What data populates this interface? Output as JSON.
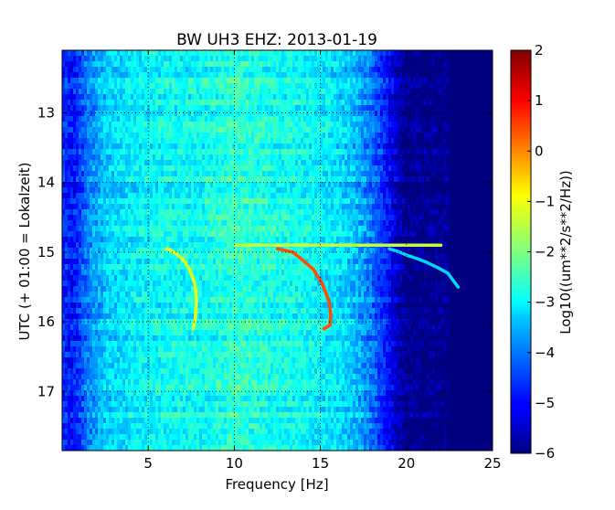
{
  "chart_data": {
    "type": "heatmap",
    "title": "BW UH3 EHZ: 2013-01-19",
    "xlabel": "Frequency [Hz]",
    "ylabel": "UTC (+ 01:00 = Lokalzeit)",
    "xlim": [
      0,
      25
    ],
    "ylim": [
      17.85,
      12.1
    ],
    "y_axis_inverted": true,
    "xticks": [
      5,
      10,
      15,
      20,
      25
    ],
    "xtick_labels": [
      "5",
      "10",
      "15",
      "20",
      "25"
    ],
    "yticks": [
      13,
      14,
      15,
      16,
      17
    ],
    "ytick_labels": [
      "13",
      "14",
      "15",
      "16",
      "17"
    ],
    "grid": true,
    "grid_style": "dotted",
    "colormap": "jet",
    "colorbar": {
      "label": "Log10((um**2/s**2/Hz))",
      "range": [
        -6,
        2
      ],
      "ticks": [
        2,
        1,
        0,
        -1,
        -2,
        -3,
        -4,
        -5,
        -6
      ],
      "tick_labels": [
        "2",
        "1",
        "0",
        "−1",
        "−2",
        "−3",
        "−4",
        "−5",
        "−6"
      ]
    },
    "background_level_by_frequency": [
      {
        "freq": 0.0,
        "level": -4.6
      },
      {
        "freq": 0.5,
        "level": -4.9
      },
      {
        "freq": 1.0,
        "level": -4.5
      },
      {
        "freq": 1.5,
        "level": -4.0
      },
      {
        "freq": 2.5,
        "level": -3.4
      },
      {
        "freq": 4.0,
        "level": -3.1
      },
      {
        "freq": 6.0,
        "level": -2.9
      },
      {
        "freq": 8.0,
        "level": -2.9
      },
      {
        "freq": 10.0,
        "level": -2.6
      },
      {
        "freq": 12.0,
        "level": -2.8
      },
      {
        "freq": 14.0,
        "level": -2.9
      },
      {
        "freq": 16.0,
        "level": -3.2
      },
      {
        "freq": 17.0,
        "level": -3.5
      },
      {
        "freq": 18.0,
        "level": -4.1
      },
      {
        "freq": 18.8,
        "level": -4.8
      },
      {
        "freq": 19.5,
        "level": -5.5
      },
      {
        "freq": 20.0,
        "level": -5.9
      },
      {
        "freq": 25.0,
        "level": -6.0
      }
    ],
    "series": [
      {
        "points": [
          {
            "x": 6.1,
            "y": 14.95
          },
          {
            "x": 6.5,
            "y": 15.0
          },
          {
            "x": 7.0,
            "y": 15.1
          },
          {
            "x": 7.4,
            "y": 15.25
          },
          {
            "x": 7.7,
            "y": 15.45
          },
          {
            "x": 7.8,
            "y": 15.7
          },
          {
            "x": 7.75,
            "y": 15.95
          },
          {
            "x": 7.6,
            "y": 16.1
          }
        ],
        "level": -1.2
      },
      {
        "points": [
          {
            "x": 12.5,
            "y": 14.95
          },
          {
            "x": 13.4,
            "y": 15.0
          },
          {
            "x": 14.0,
            "y": 15.12
          },
          {
            "x": 14.6,
            "y": 15.25
          },
          {
            "x": 15.1,
            "y": 15.45
          },
          {
            "x": 15.5,
            "y": 15.7
          },
          {
            "x": 15.6,
            "y": 15.9
          },
          {
            "x": 15.55,
            "y": 16.05
          },
          {
            "x": 15.2,
            "y": 16.1
          }
        ],
        "level": 0.4
      },
      {
        "points": [
          {
            "x": 10.0,
            "y": 14.9
          },
          {
            "x": 12.0,
            "y": 14.9
          },
          {
            "x": 14.0,
            "y": 14.9
          },
          {
            "x": 16.0,
            "y": 14.9
          },
          {
            "x": 18.0,
            "y": 14.9
          },
          {
            "x": 20.0,
            "y": 14.9
          },
          {
            "x": 22.0,
            "y": 14.9
          }
        ],
        "level": -1.5
      },
      {
        "points": [
          {
            "x": 19.0,
            "y": 14.95
          },
          {
            "x": 19.6,
            "y": 15.0
          },
          {
            "x": 20.1,
            "y": 15.05
          },
          {
            "x": 20.7,
            "y": 15.1
          },
          {
            "x": 21.2,
            "y": 15.15
          },
          {
            "x": 21.8,
            "y": 15.22
          },
          {
            "x": 22.4,
            "y": 15.3
          },
          {
            "x": 23.0,
            "y": 15.5
          }
        ],
        "level": -3.3
      }
    ]
  }
}
